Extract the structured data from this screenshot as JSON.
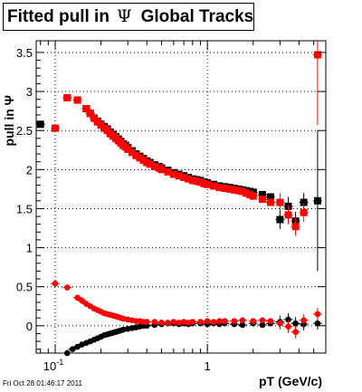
{
  "title": {
    "prefix": "Fitted pull in",
    "symbol": "Ψ",
    "suffix": "Global Tracks"
  },
  "footer": "Fri Oct 28 01:46:17 2011",
  "chart_data": {
    "type": "scatter",
    "xlabel": "pT (GeV/c)",
    "ylabel": "pull in Ψ",
    "x_scale": "log",
    "xlim": [
      0.075,
      6.0
    ],
    "ylim": [
      -0.35,
      3.65
    ],
    "x_ticks": [
      {
        "value": 0.1,
        "label": "10⁻¹"
      },
      {
        "value": 1,
        "label": "1"
      }
    ],
    "y_ticks": [
      {
        "value": 0,
        "label": "0"
      },
      {
        "value": 0.5,
        "label": "0.5"
      },
      {
        "value": 1,
        "label": "1"
      },
      {
        "value": 1.5,
        "label": "1.5"
      },
      {
        "value": 2,
        "label": "2"
      },
      {
        "value": 2.5,
        "label": "2.5"
      },
      {
        "value": 3,
        "label": "3"
      },
      {
        "value": 3.5,
        "label": "3.5"
      }
    ],
    "grid": true,
    "series": [
      {
        "color": "#000000",
        "marker": "square",
        "role": "sigma",
        "points": [
          [
            0.08,
            2.58
          ],
          [
            0.12,
            2.92
          ],
          [
            0.14,
            2.89
          ],
          [
            0.16,
            2.78
          ],
          [
            0.17,
            2.72
          ],
          [
            0.18,
            2.66
          ],
          [
            0.19,
            2.62
          ],
          [
            0.2,
            2.58
          ],
          [
            0.21,
            2.55
          ],
          [
            0.22,
            2.52
          ],
          [
            0.23,
            2.48
          ],
          [
            0.24,
            2.45
          ],
          [
            0.25,
            2.42
          ],
          [
            0.26,
            2.39
          ],
          [
            0.27,
            2.36
          ],
          [
            0.28,
            2.33
          ],
          [
            0.29,
            2.31
          ],
          [
            0.3,
            2.28
          ],
          [
            0.32,
            2.24
          ],
          [
            0.34,
            2.2
          ],
          [
            0.36,
            2.17
          ],
          [
            0.38,
            2.14
          ],
          [
            0.4,
            2.11
          ],
          [
            0.42,
            2.09
          ],
          [
            0.45,
            2.06
          ],
          [
            0.48,
            2.04
          ],
          [
            0.5,
            2.02
          ],
          [
            0.55,
            1.99
          ],
          [
            0.6,
            1.96
          ],
          [
            0.65,
            1.94
          ],
          [
            0.7,
            1.92
          ],
          [
            0.75,
            1.9
          ],
          [
            0.8,
            1.88
          ],
          [
            0.85,
            1.87
          ],
          [
            0.9,
            1.86
          ],
          [
            0.95,
            1.84
          ],
          [
            1.0,
            1.83
          ],
          [
            1.1,
            1.81
          ],
          [
            1.2,
            1.79
          ],
          [
            1.3,
            1.78
          ],
          [
            1.4,
            1.77
          ],
          [
            1.5,
            1.76
          ],
          [
            1.6,
            1.75
          ],
          [
            1.7,
            1.74
          ],
          [
            1.8,
            1.73
          ],
          [
            1.9,
            1.72
          ],
          [
            2.0,
            1.71
          ],
          [
            2.3,
            1.68
          ],
          [
            2.6,
            1.65
          ],
          [
            3.0,
            1.36
          ],
          [
            3.4,
            1.53
          ],
          [
            3.8,
            1.34
          ],
          [
            4.3,
            1.58
          ],
          [
            5.3,
            1.6
          ]
        ]
      },
      {
        "color": "#000000",
        "marker": "circle",
        "role": "mean",
        "points": [
          [
            0.12,
            -0.35
          ],
          [
            0.13,
            -0.3
          ],
          [
            0.14,
            -0.27
          ],
          [
            0.15,
            -0.24
          ],
          [
            0.16,
            -0.22
          ],
          [
            0.17,
            -0.2
          ],
          [
            0.18,
            -0.18
          ],
          [
            0.19,
            -0.16
          ],
          [
            0.2,
            -0.14
          ],
          [
            0.21,
            -0.12
          ],
          [
            0.22,
            -0.11
          ],
          [
            0.23,
            -0.1
          ],
          [
            0.24,
            -0.09
          ],
          [
            0.25,
            -0.08
          ],
          [
            0.26,
            -0.07
          ],
          [
            0.27,
            -0.06
          ],
          [
            0.28,
            -0.05
          ],
          [
            0.3,
            -0.04
          ],
          [
            0.32,
            -0.03
          ],
          [
            0.34,
            -0.02
          ],
          [
            0.36,
            -0.01
          ],
          [
            0.38,
            0.0
          ],
          [
            0.4,
            0.0
          ],
          [
            0.45,
            0.01
          ],
          [
            0.5,
            0.02
          ],
          [
            0.55,
            0.03
          ],
          [
            0.6,
            0.03
          ],
          [
            0.65,
            0.02
          ],
          [
            0.7,
            0.03
          ],
          [
            0.75,
            0.02
          ],
          [
            0.8,
            0.03
          ],
          [
            0.9,
            0.03
          ],
          [
            1.0,
            0.02
          ],
          [
            1.1,
            0.03
          ],
          [
            1.2,
            0.02
          ],
          [
            1.3,
            0.03
          ],
          [
            1.5,
            0.02
          ],
          [
            1.7,
            0.01
          ],
          [
            2.0,
            0.03
          ],
          [
            2.3,
            0.01
          ],
          [
            2.6,
            0.03
          ],
          [
            3.0,
            0.05
          ],
          [
            3.4,
            0.08
          ],
          [
            3.8,
            0.03
          ],
          [
            4.3,
            0.02
          ],
          [
            5.3,
            0.03
          ]
        ]
      },
      {
        "color": "#ff0000",
        "marker": "square",
        "role": "sigma",
        "points": [
          [
            0.1,
            2.53
          ],
          [
            0.12,
            2.92
          ],
          [
            0.14,
            2.89
          ],
          [
            0.16,
            2.78
          ],
          [
            0.17,
            2.72
          ],
          [
            0.18,
            2.66
          ],
          [
            0.19,
            2.61
          ],
          [
            0.2,
            2.57
          ],
          [
            0.21,
            2.53
          ],
          [
            0.22,
            2.5
          ],
          [
            0.23,
            2.46
          ],
          [
            0.24,
            2.43
          ],
          [
            0.25,
            2.4
          ],
          [
            0.26,
            2.37
          ],
          [
            0.27,
            2.34
          ],
          [
            0.28,
            2.31
          ],
          [
            0.29,
            2.29
          ],
          [
            0.3,
            2.26
          ],
          [
            0.32,
            2.22
          ],
          [
            0.34,
            2.18
          ],
          [
            0.36,
            2.15
          ],
          [
            0.38,
            2.12
          ],
          [
            0.4,
            2.09
          ],
          [
            0.42,
            2.07
          ],
          [
            0.45,
            2.04
          ],
          [
            0.48,
            2.02
          ],
          [
            0.5,
            2.0
          ],
          [
            0.55,
            1.97
          ],
          [
            0.6,
            1.94
          ],
          [
            0.65,
            1.92
          ],
          [
            0.7,
            1.9
          ],
          [
            0.75,
            1.88
          ],
          [
            0.8,
            1.86
          ],
          [
            0.85,
            1.85
          ],
          [
            0.9,
            1.84
          ],
          [
            0.95,
            1.82
          ],
          [
            1.0,
            1.81
          ],
          [
            1.1,
            1.79
          ],
          [
            1.2,
            1.77
          ],
          [
            1.3,
            1.76
          ],
          [
            1.4,
            1.75
          ],
          [
            1.5,
            1.74
          ],
          [
            1.6,
            1.73
          ],
          [
            1.7,
            1.72
          ],
          [
            1.8,
            1.7
          ],
          [
            1.9,
            1.68
          ],
          [
            2.0,
            1.66
          ],
          [
            2.3,
            1.62
          ],
          [
            2.6,
            1.58
          ],
          [
            3.0,
            1.58
          ],
          [
            3.4,
            1.42
          ],
          [
            3.8,
            1.27
          ],
          [
            4.3,
            1.45
          ],
          [
            5.3,
            3.47
          ]
        ]
      },
      {
        "color": "#ff0000",
        "marker": "circle",
        "role": "mean",
        "points": [
          [
            0.1,
            0.54
          ],
          [
            0.12,
            0.49
          ],
          [
            0.14,
            0.36
          ],
          [
            0.15,
            0.32
          ],
          [
            0.16,
            0.28
          ],
          [
            0.17,
            0.25
          ],
          [
            0.18,
            0.22
          ],
          [
            0.19,
            0.2
          ],
          [
            0.2,
            0.18
          ],
          [
            0.21,
            0.16
          ],
          [
            0.22,
            0.15
          ],
          [
            0.23,
            0.14
          ],
          [
            0.24,
            0.13
          ],
          [
            0.25,
            0.12
          ],
          [
            0.26,
            0.11
          ],
          [
            0.27,
            0.1
          ],
          [
            0.28,
            0.09
          ],
          [
            0.3,
            0.08
          ],
          [
            0.32,
            0.07
          ],
          [
            0.34,
            0.06
          ],
          [
            0.36,
            0.06
          ],
          [
            0.38,
            0.05
          ],
          [
            0.4,
            0.05
          ],
          [
            0.45,
            0.05
          ],
          [
            0.5,
            0.04
          ],
          [
            0.55,
            0.04
          ],
          [
            0.6,
            0.05
          ],
          [
            0.65,
            0.04
          ],
          [
            0.7,
            0.05
          ],
          [
            0.75,
            0.04
          ],
          [
            0.8,
            0.05
          ],
          [
            0.9,
            0.05
          ],
          [
            1.0,
            0.06
          ],
          [
            1.1,
            0.05
          ],
          [
            1.2,
            0.06
          ],
          [
            1.3,
            0.06
          ],
          [
            1.5,
            0.06
          ],
          [
            1.7,
            0.07
          ],
          [
            2.0,
            0.06
          ],
          [
            2.3,
            0.07
          ],
          [
            2.6,
            0.06
          ],
          [
            3.0,
            0.03
          ],
          [
            3.4,
            -0.01
          ],
          [
            3.8,
            -0.08
          ],
          [
            4.3,
            0.07
          ],
          [
            5.3,
            0.15
          ]
        ]
      }
    ]
  }
}
